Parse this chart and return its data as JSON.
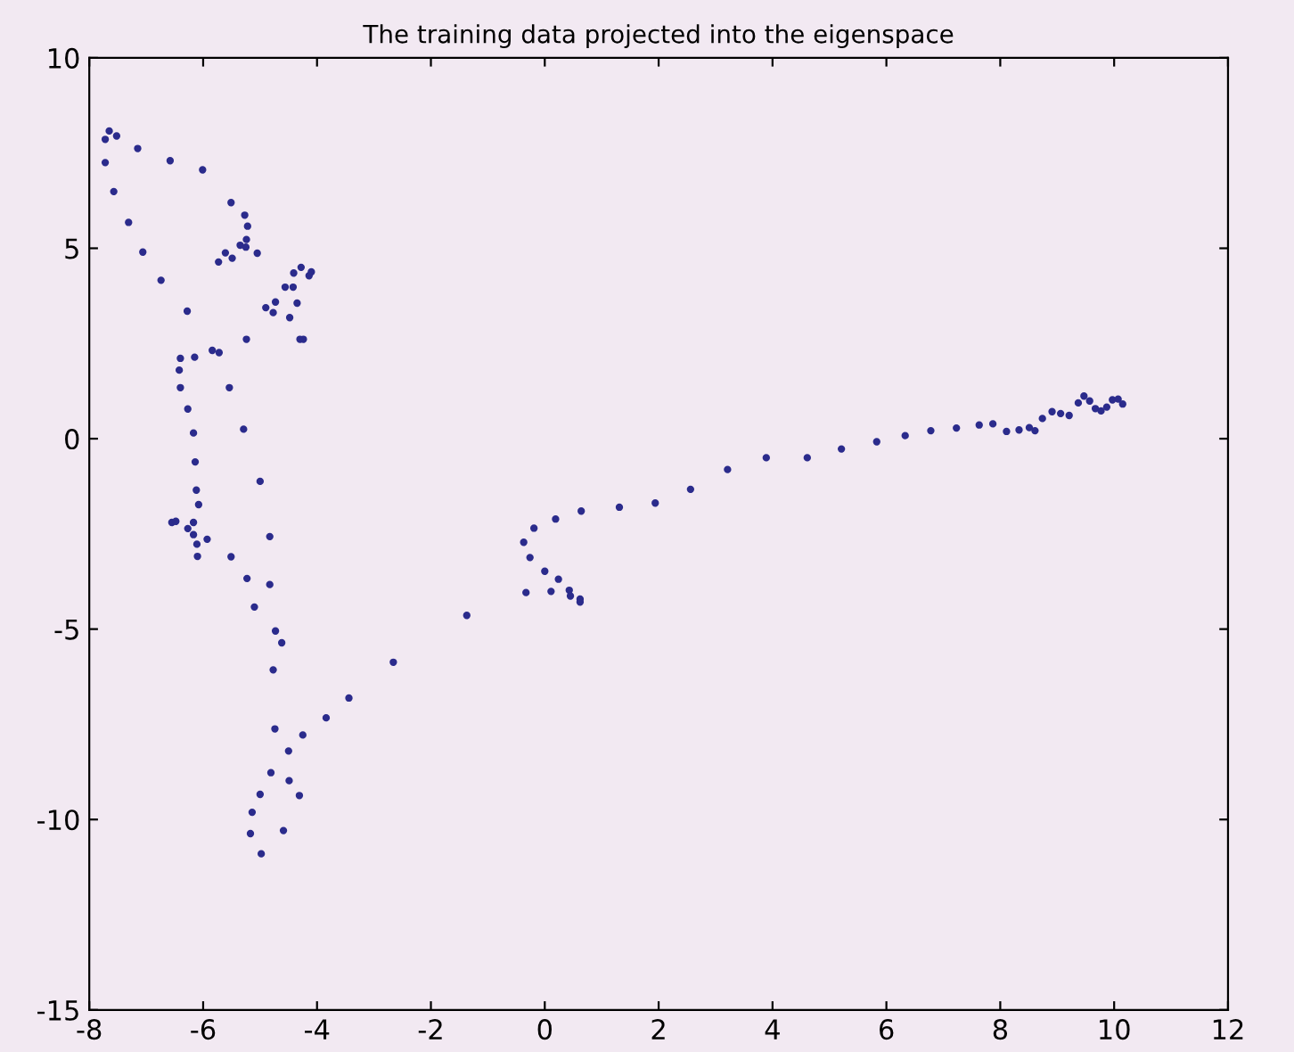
{
  "chart_data": {
    "type": "scatter",
    "title": "The training data projected into the eigenspace",
    "x": [
      -7.72,
      -7.65,
      -7.52,
      -7.72,
      -7.15,
      -6.58,
      -6.01,
      -7.57,
      -7.31,
      -7.06,
      -6.74,
      -6.28,
      -5.51,
      -5.27,
      -5.22,
      -5.24,
      -5.35,
      -5.25,
      -5.05,
      -5.61,
      -5.49,
      -5.73,
      -4.41,
      -4.28,
      -4.1,
      -4.14,
      -4.56,
      -4.42,
      -4.35,
      -4.73,
      -4.9,
      -4.77,
      -4.48,
      -4.3,
      -4.24,
      -5.24,
      -5.84,
      -5.72,
      -6.4,
      -6.15,
      -6.42,
      -6.4,
      -5.54,
      -6.27,
      -6.17,
      -5.29,
      -6.14,
      -5.0,
      -6.12,
      -6.08,
      -6.55,
      -6.48,
      -6.17,
      -6.27,
      -6.17,
      -5.93,
      -6.11,
      -6.1,
      -5.51,
      -4.83,
      -5.23,
      -4.83,
      -5.1,
      -4.73,
      -4.62,
      -4.77,
      -2.66,
      -3.44,
      -3.84,
      -4.25,
      -4.74,
      -4.5,
      -4.81,
      -4.49,
      -4.31,
      -5.0,
      -5.14,
      -5.17,
      -4.59,
      -4.98,
      -1.37,
      -0.33,
      -0.37,
      -0.26,
      -0.19,
      0.19,
      0.64,
      1.31,
      1.94,
      2.56,
      3.21,
      0.0,
      0.24,
      0.11,
      0.43,
      0.45,
      0.62,
      0.62,
      3.89,
      4.61,
      5.21,
      5.83,
      6.33,
      6.78,
      7.23,
      7.63,
      7.87,
      8.11,
      8.33,
      8.51,
      8.61,
      8.74,
      8.91,
      9.06,
      9.21,
      9.37,
      9.47,
      9.57,
      9.67,
      9.77,
      9.87,
      9.97,
      10.07,
      10.15
    ],
    "values": [
      7.86,
      8.08,
      7.95,
      7.25,
      7.62,
      7.3,
      7.06,
      6.49,
      5.68,
      4.9,
      4.16,
      3.35,
      6.2,
      5.87,
      5.58,
      5.23,
      5.08,
      5.03,
      4.87,
      4.88,
      4.74,
      4.64,
      4.35,
      4.5,
      4.38,
      4.28,
      3.98,
      3.98,
      3.56,
      3.59,
      3.44,
      3.31,
      3.18,
      2.61,
      2.61,
      2.61,
      2.32,
      2.26,
      2.11,
      2.14,
      1.8,
      1.34,
      1.34,
      0.78,
      0.15,
      0.25,
      -0.61,
      -1.12,
      -1.35,
      -1.73,
      -2.2,
      -2.17,
      -2.2,
      -2.36,
      -2.52,
      -2.64,
      -2.77,
      -3.09,
      -3.1,
      -2.57,
      -3.67,
      -3.83,
      -4.42,
      -5.05,
      -5.36,
      -6.07,
      -5.87,
      -6.81,
      -7.33,
      -7.78,
      -7.62,
      -8.2,
      -8.77,
      -8.98,
      -9.37,
      -9.34,
      -9.81,
      -10.37,
      -10.29,
      -10.9,
      -4.64,
      -4.04,
      -2.72,
      -3.12,
      -2.35,
      -2.11,
      -1.9,
      -1.8,
      -1.69,
      -1.33,
      -0.81,
      -3.48,
      -3.69,
      -4.01,
      -3.98,
      -4.13,
      -4.21,
      -4.29,
      -0.5,
      -0.5,
      -0.27,
      -0.08,
      0.08,
      0.21,
      0.28,
      0.36,
      0.39,
      0.19,
      0.23,
      0.29,
      0.21,
      0.53,
      0.71,
      0.66,
      0.61,
      0.94,
      1.12,
      0.99,
      0.79,
      0.73,
      0.83,
      1.02,
      1.04,
      0.91
    ],
    "color": "#2b2b8c",
    "marker": "circle",
    "xlim": [
      -8,
      12
    ],
    "xticks": [
      -8,
      -6,
      -4,
      -2,
      0,
      2,
      4,
      6,
      8,
      10,
      12
    ],
    "ylim": [
      -15,
      10
    ],
    "yticks": [
      -15,
      -10,
      -5,
      0,
      5,
      10
    ],
    "grid": false
  }
}
